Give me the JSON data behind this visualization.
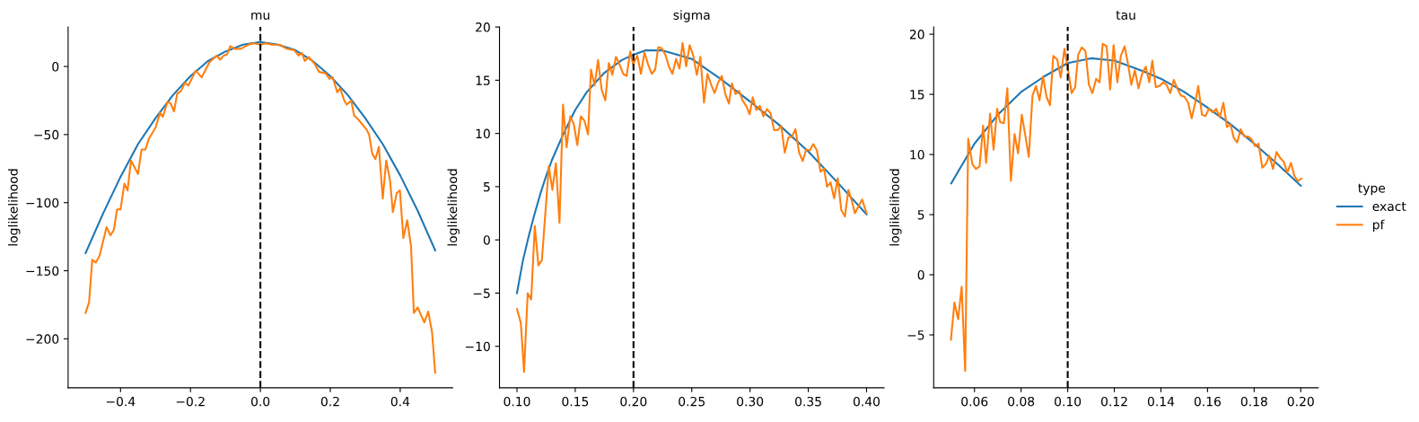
{
  "chart_data": [
    {
      "type": "line",
      "title": "mu",
      "ylabel": "loglikelihood",
      "xlim": [
        -0.55,
        0.55
      ],
      "ylim": [
        -236,
        29
      ],
      "xticks": [
        {
          "value": -0.4,
          "label": "−0.4"
        },
        {
          "value": -0.2,
          "label": "−0.2"
        },
        {
          "value": 0,
          "label": "0.0"
        },
        {
          "value": 0.2,
          "label": "0.2"
        },
        {
          "value": 0.4,
          "label": "0.4"
        }
      ],
      "yticks": [
        {
          "value": -200,
          "label": "−200"
        },
        {
          "value": -150,
          "label": "−150"
        },
        {
          "value": -100,
          "label": "−100"
        },
        {
          "value": -50,
          "label": "−50"
        },
        0
      ],
      "grid": false,
      "line_style": "solid",
      "marker": "none",
      "ref_lines": [
        {
          "axis": "x",
          "value": 0,
          "color": "#000000",
          "line_style": "dashed"
        }
      ],
      "series": [
        {
          "color": "#1f77b4",
          "x": [
            -0.5,
            -0.45,
            -0.4,
            -0.35,
            -0.3,
            -0.25,
            -0.2,
            -0.15,
            -0.1,
            -0.05,
            0,
            0.05,
            0.1,
            0.15,
            0.2,
            0.25,
            0.3,
            0.35,
            0.4,
            0.45,
            0.5
          ],
          "values": [
            -137,
            -108,
            -81,
            -57,
            -38,
            -21,
            -7,
            4,
            11,
            16,
            18,
            16,
            12,
            4,
            -7,
            -21,
            -38,
            -57,
            -80,
            -106,
            -135
          ]
        },
        {
          "color": "#ff7f0e",
          "x": [
            -0.5,
            -0.49,
            -0.481,
            -0.471,
            -0.46,
            -0.44,
            -0.429,
            -0.419,
            -0.41,
            -0.4,
            -0.389,
            -0.38,
            -0.37,
            -0.35,
            -0.34,
            -0.329,
            -0.319,
            -0.3,
            -0.287,
            -0.279,
            -0.266,
            -0.257,
            -0.247,
            -0.238,
            -0.227,
            -0.216,
            -0.206,
            -0.185,
            -0.168,
            -0.146,
            -0.125,
            -0.115,
            -0.105,
            -0.095,
            -0.086,
            -0.074,
            -0.056,
            -0.035,
            -0.018,
            0,
            0.016,
            0.033,
            0.055,
            0.076,
            0.097,
            0.109,
            0.119,
            0.127,
            0.138,
            0.155,
            0.168,
            0.187,
            0.197,
            0.207,
            0.22,
            0.228,
            0.24,
            0.247,
            0.26,
            0.268,
            0.277,
            0.29,
            0.303,
            0.311,
            0.32,
            0.329,
            0.339,
            0.35,
            0.36,
            0.371,
            0.379,
            0.39,
            0.399,
            0.409,
            0.42,
            0.431,
            0.439,
            0.45,
            0.469,
            0.48,
            0.491,
            0.5
          ],
          "values": [
            -181,
            -173,
            -142,
            -144,
            -139,
            -118,
            -124,
            -120,
            -105,
            -105,
            -86,
            -91,
            -69,
            -79,
            -61,
            -61,
            -53,
            -45,
            -34,
            -37,
            -26,
            -27,
            -33,
            -20,
            -18,
            -12,
            -14,
            -3,
            -8,
            3,
            8,
            5,
            8,
            9,
            15,
            13,
            13,
            16,
            17,
            16,
            17,
            16,
            16,
            13,
            12,
            8,
            10,
            4,
            7,
            2,
            -4,
            -5,
            -9,
            -8,
            -19,
            -16,
            -25,
            -28,
            -25,
            -36,
            -38,
            -42,
            -46,
            -50,
            -64,
            -68,
            -59,
            -97,
            -69,
            -84,
            -107,
            -93,
            -91,
            -126,
            -113,
            -132,
            -181,
            -177,
            -188,
            -180,
            -195,
            -225
          ]
        }
      ]
    },
    {
      "type": "line",
      "title": "sigma",
      "ylabel": "loglikelihood",
      "xlim": [
        0.085,
        0.415
      ],
      "ylim": [
        -13.9,
        20.0
      ],
      "xticks": [
        {
          "value": 0.1,
          "label": "0.10"
        },
        {
          "value": 0.15,
          "label": "0.15"
        },
        {
          "value": 0.2,
          "label": "0.20"
        },
        {
          "value": 0.25,
          "label": "0.25"
        },
        {
          "value": 0.3,
          "label": "0.30"
        },
        {
          "value": 0.35,
          "label": "0.35"
        },
        {
          "value": 0.4,
          "label": "0.40"
        }
      ],
      "yticks": [
        {
          "value": -10,
          "label": "−10"
        },
        {
          "value": -5,
          "label": "−5"
        },
        0,
        5,
        10,
        15,
        20
      ],
      "grid": false,
      "line_style": "solid",
      "marker": "none",
      "ref_lines": [
        {
          "axis": "x",
          "value": 0.2,
          "color": "#000000",
          "line_style": "dashed"
        }
      ],
      "series": [
        {
          "color": "#1f77b4",
          "x": [
            0.1,
            0.105,
            0.11,
            0.115,
            0.12,
            0.125,
            0.13,
            0.14,
            0.15,
            0.16,
            0.175,
            0.19,
            0.2,
            0.21,
            0.225,
            0.25,
            0.275,
            0.3,
            0.325,
            0.35,
            0.375,
            0.4
          ],
          "values": [
            -5,
            -2,
            0.3,
            2.4,
            4.3,
            6.0,
            7.5,
            10.0,
            12.2,
            13.9,
            15.7,
            16.9,
            17.4,
            17.8,
            17.8,
            17.0,
            15.1,
            13.0,
            10.8,
            8.3,
            5.4,
            2.4
          ]
        },
        {
          "color": "#ff7f0e",
          "x": [
            0.1,
            0.1033,
            0.1061,
            0.1092,
            0.1122,
            0.1153,
            0.1184,
            0.1214,
            0.1273,
            0.1304,
            0.1334,
            0.1365,
            0.1395,
            0.1426,
            0.1457,
            0.1487,
            0.1518,
            0.1548,
            0.1579,
            0.161,
            0.1635,
            0.1666,
            0.1696,
            0.1727,
            0.1758,
            0.1788,
            0.1819,
            0.1849,
            0.188,
            0.1911,
            0.1941,
            0.1972,
            0.1997,
            0.2033,
            0.2064,
            0.2094,
            0.2125,
            0.2156,
            0.2186,
            0.2212,
            0.2242,
            0.2273,
            0.2304,
            0.2334,
            0.2365,
            0.2395,
            0.2421,
            0.2452,
            0.2482,
            0.2513,
            0.2543,
            0.2574,
            0.2605,
            0.2635,
            0.2666,
            0.2696,
            0.2727,
            0.2758,
            0.2788,
            0.2819,
            0.2844,
            0.2875,
            0.2906,
            0.2936,
            0.2967,
            0.2997,
            0.3023,
            0.3054,
            0.3084,
            0.3115,
            0.3145,
            0.3176,
            0.3207,
            0.3237,
            0.3268,
            0.3298,
            0.3329,
            0.336,
            0.339,
            0.3421,
            0.3452,
            0.3482,
            0.3513,
            0.3543,
            0.3574,
            0.3605,
            0.3635,
            0.3661,
            0.3691,
            0.3722,
            0.3753,
            0.3783,
            0.3814,
            0.3844,
            0.387,
            0.39,
            0.3962,
            0.4
          ],
          "values": [
            -6.5,
            -7.8,
            -12.4,
            -5.0,
            -5.6,
            1.3,
            -2.4,
            -1.9,
            6.9,
            4.7,
            7.2,
            1.6,
            12.7,
            8.7,
            11.6,
            10.9,
            8.9,
            11.6,
            11.2,
            9.9,
            16.0,
            14.5,
            16.9,
            14.1,
            13.1,
            16.6,
            15.5,
            17.2,
            16.5,
            15.6,
            15.4,
            17.7,
            16.5,
            17.3,
            15.6,
            17.6,
            16.5,
            15.6,
            16.0,
            18.1,
            18.0,
            17.4,
            16.3,
            15.6,
            17.0,
            16.1,
            18.5,
            16.3,
            18.3,
            17.3,
            15.5,
            17.2,
            12.9,
            15.6,
            14.6,
            13.8,
            14.8,
            15.4,
            13.7,
            12.8,
            14.7,
            13.7,
            14.0,
            13.1,
            12.6,
            11.8,
            13.4,
            12.2,
            12.6,
            11.6,
            12.3,
            11.9,
            10.3,
            10.3,
            10.7,
            8.2,
            9.6,
            9.7,
            10.4,
            8.2,
            7.4,
            8.5,
            8.4,
            9.0,
            8.4,
            6.4,
            6.7,
            5.0,
            5.4,
            3.9,
            5.8,
            2.8,
            2.2,
            4.7,
            3.8,
            2.5,
            3.8,
            2.5
          ]
        }
      ]
    },
    {
      "type": "line",
      "title": "tau",
      "ylabel": "loglikelihood",
      "xlim": [
        0.0425,
        0.2075
      ],
      "ylim": [
        -9.4,
        20.6
      ],
      "xticks": [
        {
          "value": 0.06,
          "label": "0.06"
        },
        {
          "value": 0.08,
          "label": "0.08"
        },
        {
          "value": 0.1,
          "label": "0.10"
        },
        {
          "value": 0.12,
          "label": "0.12"
        },
        {
          "value": 0.14,
          "label": "0.14"
        },
        {
          "value": 0.16,
          "label": "0.16"
        },
        {
          "value": 0.18,
          "label": "0.18"
        },
        {
          "value": 0.2,
          "label": "0.20"
        }
      ],
      "yticks": [
        {
          "value": -5,
          "label": "−5"
        },
        0,
        5,
        10,
        15,
        20
      ],
      "grid": false,
      "line_style": "solid",
      "marker": "none",
      "legend": "right",
      "legend_title": "type",
      "ref_lines": [
        {
          "axis": "x",
          "value": 0.1,
          "color": "#000000",
          "line_style": "dashed"
        }
      ],
      "series": [
        {
          "name": "exact",
          "color": "#1f77b4",
          "x": [
            0.05,
            0.06,
            0.07,
            0.08,
            0.09,
            0.1,
            0.11,
            0.12,
            0.13,
            0.14,
            0.15,
            0.16,
            0.17,
            0.18,
            0.19,
            0.2
          ],
          "values": [
            7.6,
            10.9,
            13.3,
            15.2,
            16.5,
            17.6,
            18.0,
            17.8,
            17.1,
            16.3,
            15.2,
            13.9,
            12.5,
            10.9,
            9.2,
            7.4
          ]
        },
        {
          "name": "pf",
          "color": "#ff7f0e",
          "x": [
            0.0499,
            0.0514,
            0.053,
            0.0545,
            0.056,
            0.0573,
            0.0591,
            0.0606,
            0.0622,
            0.0637,
            0.065,
            0.0667,
            0.0682,
            0.0697,
            0.071,
            0.0726,
            0.0741,
            0.0756,
            0.0772,
            0.0787,
            0.0803,
            0.0818,
            0.0833,
            0.0849,
            0.0864,
            0.0879,
            0.0894,
            0.0909,
            0.0924,
            0.0938,
            0.0955,
            0.097,
            0.0986,
            0.1001,
            0.1017,
            0.1032,
            0.1045,
            0.106,
            0.1076,
            0.1091,
            0.1106,
            0.1122,
            0.1137,
            0.115,
            0.1167,
            0.1182,
            0.1197,
            0.1213,
            0.1228,
            0.1244,
            0.1259,
            0.1273,
            0.1288,
            0.1304,
            0.1319,
            0.1335,
            0.135,
            0.1363,
            0.1378,
            0.1394,
            0.1409,
            0.1424,
            0.144,
            0.1455,
            0.147,
            0.1486,
            0.1501,
            0.1517,
            0.1532,
            0.1547,
            0.156,
            0.1576,
            0.1591,
            0.1606,
            0.1622,
            0.1637,
            0.1653,
            0.1668,
            0.1683,
            0.1699,
            0.1712,
            0.1727,
            0.1742,
            0.1758,
            0.1773,
            0.1788,
            0.1804,
            0.1819,
            0.1835,
            0.185,
            0.1865,
            0.1881,
            0.1896,
            0.1912,
            0.1927,
            0.1942,
            0.1958,
            0.1973,
            0.1988,
            0.2003
          ],
          "values": [
            -5.4,
            -2.3,
            -3.7,
            -1.0,
            -8.0,
            11.3,
            9.2,
            8.8,
            9.0,
            12.4,
            9.3,
            13.4,
            10.4,
            13.8,
            12.7,
            12.6,
            15.5,
            7.8,
            11.7,
            10.1,
            13.3,
            11.6,
            9.8,
            14.9,
            15.7,
            14.5,
            16.5,
            14.8,
            14.1,
            18.2,
            17.9,
            16.4,
            18.8,
            17.1,
            15.1,
            15.6,
            18.3,
            18.9,
            18.6,
            15.8,
            15.1,
            16.3,
            16.0,
            19.2,
            19.0,
            15.4,
            19.1,
            16.0,
            18.2,
            19.0,
            17.5,
            15.8,
            17.0,
            15.5,
            16.7,
            17.3,
            16.0,
            17.8,
            15.6,
            15.7,
            16.0,
            15.8,
            15.1,
            16.2,
            15.5,
            14.9,
            14.8,
            14.3,
            13.0,
            14.3,
            15.7,
            13.3,
            13.2,
            13.8,
            13.5,
            13.8,
            13.1,
            14.3,
            12.3,
            12.5,
            11.4,
            11.0,
            12.1,
            11.5,
            11.5,
            11.3,
            10.7,
            10.9,
            8.9,
            9.2,
            9.9,
            8.8,
            10.2,
            9.7,
            9.4,
            8.5,
            9.3,
            8.2,
            7.8,
            8.0
          ]
        }
      ]
    }
  ]
}
